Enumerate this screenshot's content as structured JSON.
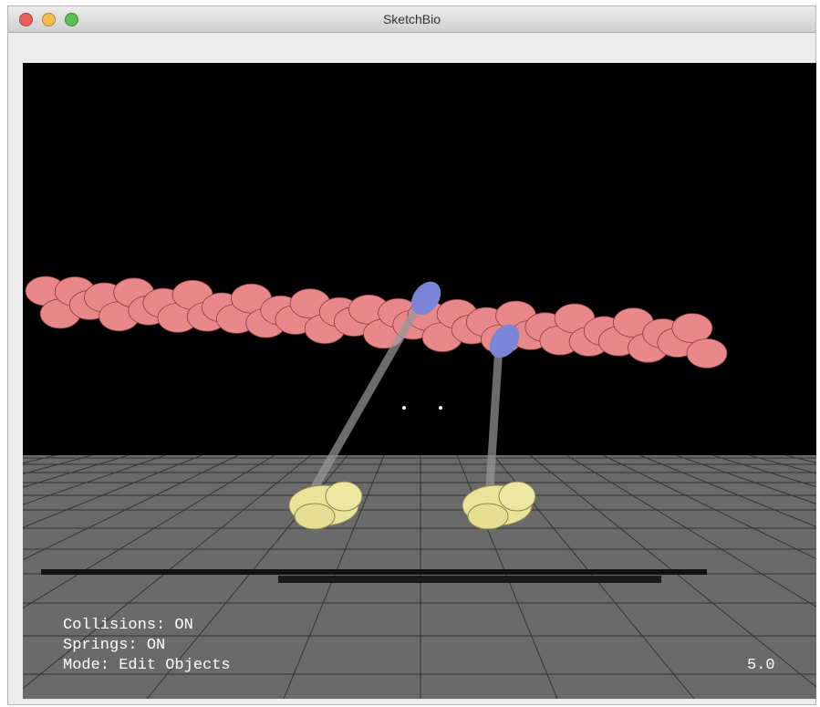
{
  "window": {
    "title": "SketchBio"
  },
  "status": {
    "collisions": "Collisions: ON",
    "springs": "Springs: ON",
    "mode": "Mode: Edit Objects",
    "scale": "5.0"
  }
}
